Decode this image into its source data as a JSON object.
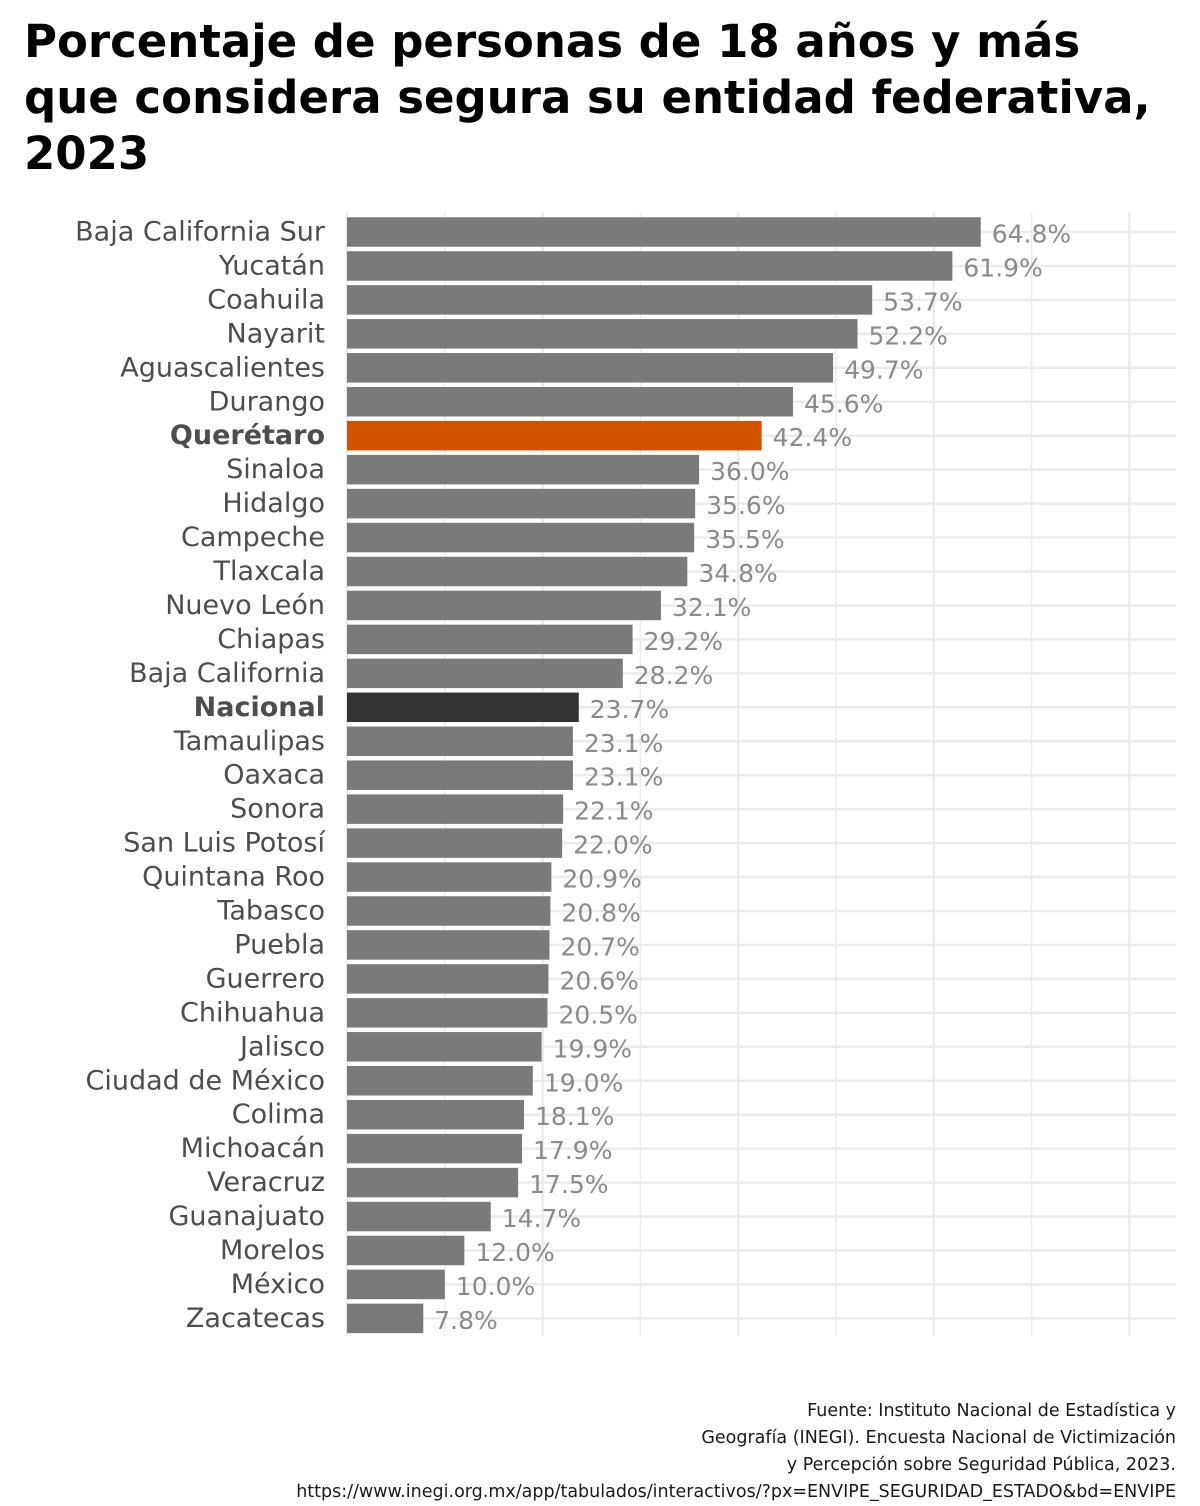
{
  "colors": {
    "bar_default": "#7a7a7a",
    "bar_highlight": "#d35400",
    "bar_national": "#333333",
    "label_default": "#4d4d4d",
    "value_default": "#8a8a8a",
    "grid": "#ebebeb"
  },
  "source": {
    "line1": "Fuente: Instituto Nacional de Estadística y",
    "line2": "Geografía (INEGI). Encuesta Nacional de Victimización",
    "line3": "y Percepción sobre Seguridad Pública, 2023.",
    "line4": "https://www.inegi.org.mx/app/tabulados/interactivos/?px=ENVIPE_SEGURIDAD_ESTADO&bd=ENVIPE"
  },
  "chart_data": {
    "type": "bar",
    "orientation": "horizontal",
    "title": "Porcentaje de personas de 18 años y más que considera segura su entidad federativa, 2023",
    "xlabel": "",
    "ylabel": "",
    "xlim": [
      0,
      80
    ],
    "grid": true,
    "value_suffix": "%",
    "highlight": "Querétaro",
    "reference": "Nacional",
    "categories": [
      "Baja California Sur",
      "Yucatán",
      "Coahuila",
      "Nayarit",
      "Aguascalientes",
      "Durango",
      "Querétaro",
      "Sinaloa",
      "Hidalgo",
      "Campeche",
      "Tlaxcala",
      "Nuevo León",
      "Chiapas",
      "Baja California",
      "Nacional",
      "Tamaulipas",
      "Oaxaca",
      "Sonora",
      "San Luis Potosí",
      "Quintana Roo",
      "Tabasco",
      "Puebla",
      "Guerrero",
      "Chihuahua",
      "Jalisco",
      "Ciudad de México",
      "Colima",
      "Michoacán",
      "Veracruz",
      "Guanajuato",
      "Morelos",
      "México",
      "Zacatecas"
    ],
    "values": [
      64.8,
      61.9,
      53.7,
      52.2,
      49.7,
      45.6,
      42.4,
      36.0,
      35.6,
      35.5,
      34.8,
      32.1,
      29.2,
      28.2,
      23.7,
      23.1,
      23.1,
      22.1,
      22.0,
      20.9,
      20.8,
      20.7,
      20.6,
      20.5,
      19.9,
      19.0,
      18.1,
      17.9,
      17.5,
      14.7,
      12.0,
      10.0,
      7.8
    ]
  }
}
